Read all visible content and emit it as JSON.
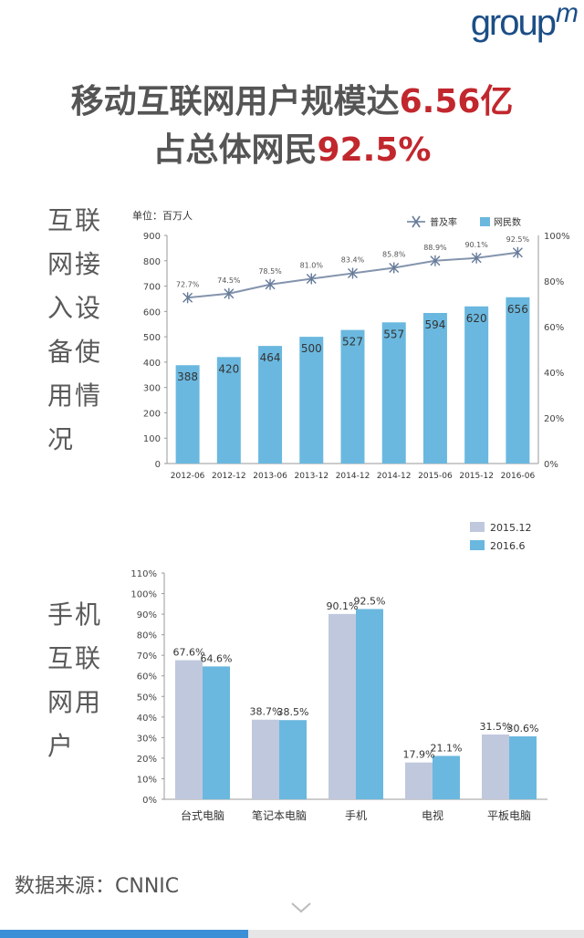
{
  "logo": {
    "text": "group",
    "m": "m"
  },
  "title": {
    "line1_a": "移动互联网用户规模达",
    "line1_b": "6.56亿",
    "line2_a": "占总体网民",
    "line2_b": "92.5%"
  },
  "sections": {
    "device_label": "互联网接入设备使用情况",
    "mobile_label": "手机互联网用户"
  },
  "source": "数据来源：CNNIC",
  "progress": 0.425,
  "colors": {
    "accent_red": "#c1272d",
    "bar_blue": "#6ab8df",
    "bar_gray": "#c0c8dd",
    "line": "#8494ad"
  },
  "chart_data": [
    {
      "type": "bar",
      "unit_label": "单位：百万人",
      "categories": [
        "2012-06",
        "2012-12",
        "2013-06",
        "2013-12",
        "2014-12",
        "2014-12",
        "2015-06",
        "2015-12",
        "2016-06"
      ],
      "ylim": [
        0,
        900
      ],
      "y_ticks": [
        "0",
        "100",
        "200",
        "300",
        "400",
        "500",
        "600",
        "700",
        "800",
        "900"
      ],
      "y2lim": [
        0,
        100
      ],
      "y2_ticks": [
        "0%",
        "20%",
        "40%",
        "60%",
        "80%",
        "100%"
      ],
      "legend": [
        "普及率",
        "网民数"
      ],
      "legend_position": "top-right",
      "series": [
        {
          "name": "网民数",
          "type": "bar",
          "values": [
            388,
            420,
            464,
            500,
            527,
            557,
            594,
            620,
            656
          ],
          "labels": [
            "388",
            "420",
            "464",
            "500",
            "527",
            "557",
            "594",
            "620",
            "656"
          ]
        },
        {
          "name": "普及率",
          "type": "line",
          "axis": "right",
          "values": [
            72.7,
            74.5,
            78.5,
            81.0,
            83.4,
            85.8,
            88.9,
            90.1,
            92.5
          ],
          "labels": [
            "72.7%",
            "74.5%",
            "78.5%",
            "81.0%",
            "83.4%",
            "85.8%",
            "88.9%",
            "90.1%",
            "92.5%"
          ]
        }
      ]
    },
    {
      "type": "bar",
      "categories": [
        "台式电脑",
        "笔记本电脑",
        "手机",
        "电视",
        "平板电脑"
      ],
      "ylim": [
        0,
        110
      ],
      "y_ticks": [
        "0%",
        "10%",
        "20%",
        "30%",
        "40%",
        "50%",
        "60%",
        "70%",
        "80%",
        "90%",
        "100%",
        "110%"
      ],
      "legend_position": "top-right",
      "series": [
        {
          "name": "2015.12",
          "values": [
            67.6,
            38.7,
            90.1,
            17.9,
            31.5
          ],
          "labels": [
            "67.6%",
            "38.7%",
            "90.1%",
            "17.9%",
            "31.5%"
          ]
        },
        {
          "name": "2016.6",
          "values": [
            64.6,
            38.5,
            92.5,
            21.1,
            30.6
          ],
          "labels": [
            "64.6%",
            "38.5%",
            "92.5%",
            "21.1%",
            "30.6%"
          ]
        }
      ]
    }
  ]
}
